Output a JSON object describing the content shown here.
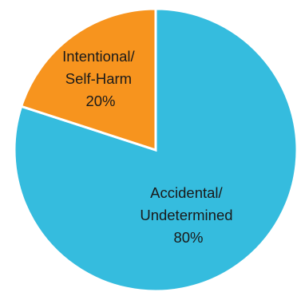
{
  "chart_data": {
    "type": "pie",
    "title": "",
    "start": "top, clockwise",
    "slices": [
      {
        "name": "Accidental/ Undetermined",
        "value": 80,
        "percent_label": "80%",
        "label_lines": [
          "Accidental/",
          "Undetermined",
          "80%"
        ],
        "color": "#35BCDE"
      },
      {
        "name": "Intentional/ Self-Harm",
        "value": 20,
        "percent_label": "20%",
        "label_lines": [
          "Intentional/",
          "Self-Harm",
          "20%"
        ],
        "color": "#F7941E"
      }
    ],
    "legend": "none"
  }
}
